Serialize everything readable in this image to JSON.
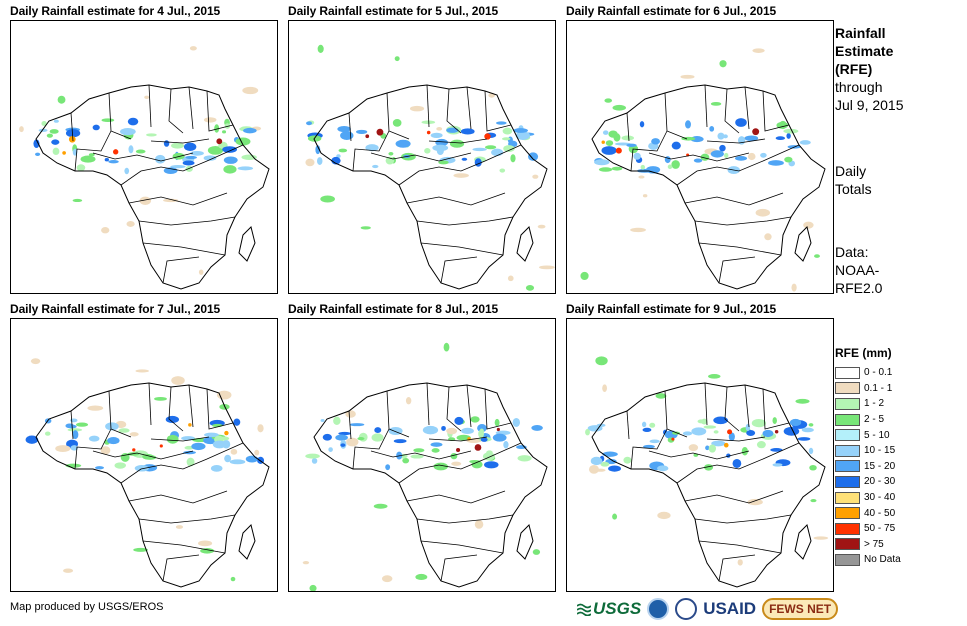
{
  "panels": [
    {
      "title": "Daily Rainfall estimate for 4 Jul., 2015"
    },
    {
      "title": "Daily Rainfall estimate for 5 Jul., 2015"
    },
    {
      "title": "Daily Rainfall estimate for 6 Jul., 2015"
    },
    {
      "title": "Daily Rainfall estimate for 7 Jul., 2015"
    },
    {
      "title": "Daily Rainfall estimate for 8 Jul., 2015"
    },
    {
      "title": "Daily Rainfall estimate for 9 Jul., 2015"
    }
  ],
  "info": {
    "heading_1": "Rainfall",
    "heading_2": "Estimate",
    "heading_3": "(RFE)",
    "through": "through",
    "through_date": "Jul 9, 2015",
    "daily_1": "Daily",
    "daily_2": "Totals",
    "data_1": "Data:",
    "data_2": "NOAA-",
    "data_3": "RFE2.0"
  },
  "legend": {
    "title": "RFE (mm)",
    "items": [
      {
        "label": "0 - 0.1",
        "color": "#ffffff"
      },
      {
        "label": "0.1 - 1",
        "color": "#f0dcc0"
      },
      {
        "label": "1 - 2",
        "color": "#b4f5b4"
      },
      {
        "label": "2 - 5",
        "color": "#78e678"
      },
      {
        "label": "5 - 10",
        "color": "#b4f0fa"
      },
      {
        "label": "10 - 15",
        "color": "#96d2fa"
      },
      {
        "label": "15 - 20",
        "color": "#50a5f5"
      },
      {
        "label": "20 - 30",
        "color": "#1e6eeb"
      },
      {
        "label": "30 - 40",
        "color": "#ffe178"
      },
      {
        "label": "40 - 50",
        "color": "#ffa000"
      },
      {
        "label": "50 - 75",
        "color": "#ff3200"
      },
      {
        "label": "> 75",
        "color": "#a01414"
      },
      {
        "label": "No Data",
        "color": "#969696"
      }
    ]
  },
  "footer": {
    "credit": "Map produced by USGS/EROS"
  },
  "logos": {
    "usgs": "USGS",
    "usaid": "USAID",
    "fews": "FEWS NET"
  }
}
